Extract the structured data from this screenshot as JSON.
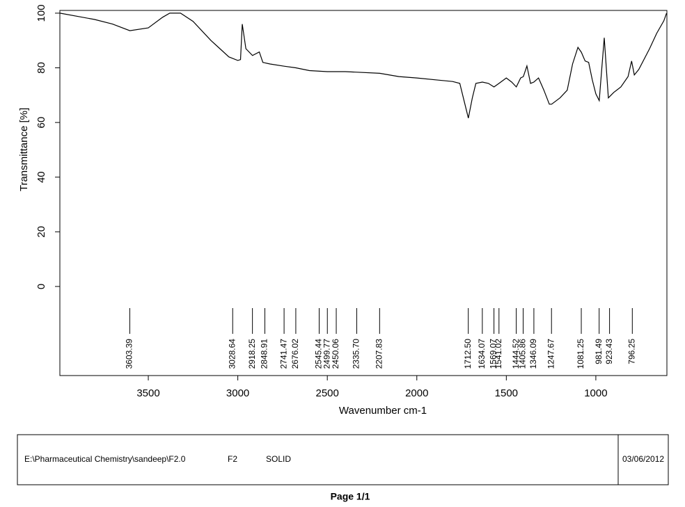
{
  "chart_data": {
    "type": "line",
    "x_label": "Wavenumber cm-1",
    "y_label": "Transmittance [%]",
    "color": "#000000",
    "xlim": [
      3994,
      603
    ],
    "ylim": [
      -32.6,
      101
    ],
    "xticks": [
      3500,
      3000,
      2500,
      2000,
      1500,
      1000
    ],
    "yticks": [
      0,
      20,
      40,
      60,
      80,
      100
    ],
    "x": [
      3994,
      3800,
      3700,
      3603,
      3500,
      3420,
      3380,
      3320,
      3250,
      3150,
      3100,
      3050,
      3000,
      2985,
      2975,
      2955,
      2918,
      2880,
      2860,
      2820,
      2741,
      2676,
      2600,
      2500,
      2400,
      2207,
      2100,
      2000,
      1800,
      1760,
      1740,
      1712,
      1690,
      1670,
      1634,
      1600,
      1569,
      1541,
      1500,
      1470,
      1444,
      1420,
      1405,
      1385,
      1365,
      1346,
      1320,
      1290,
      1260,
      1247,
      1200,
      1160,
      1130,
      1100,
      1081,
      1060,
      1040,
      1020,
      1000,
      981,
      970,
      953,
      930,
      900,
      860,
      820,
      800,
      785,
      760,
      700,
      660,
      620,
      605
    ],
    "values": [
      100,
      97.7,
      96,
      93.6,
      94.6,
      98.5,
      100,
      100,
      97,
      90,
      87,
      84,
      82.7,
      83,
      96,
      87,
      84.5,
      85.8,
      82,
      81.4,
      80.6,
      80,
      79,
      78.6,
      78.6,
      78,
      76.8,
      76.3,
      75,
      74.3,
      69,
      61.6,
      69,
      74.3,
      74.8,
      74.3,
      73,
      74.3,
      76.3,
      74.8,
      73,
      76.3,
      76.8,
      80.7,
      74.3,
      74.8,
      76.3,
      71.8,
      66.7,
      66.7,
      69,
      71.8,
      81.4,
      87.5,
      85.7,
      82.5,
      82,
      75.6,
      70.5,
      68,
      77,
      91,
      69,
      71,
      73,
      76.8,
      82.5,
      77.4,
      79.4,
      87,
      92.6,
      97.2,
      100
    ],
    "peaks": [
      3603.39,
      3028.64,
      2918.25,
      2848.91,
      2741.47,
      2676.02,
      2545.44,
      2499.77,
      2450.06,
      {
        "value": 2335.7,
        "label": "2335.70"
      },
      2207.83,
      {
        "value": 1712.5,
        "label": "1712.50"
      },
      1634.07,
      1569.07,
      1541.02,
      1444.52,
      1405.86,
      1346.09,
      1247.67,
      1081.25,
      981.49,
      923.43,
      796.25
    ]
  },
  "footer": {
    "path": "E:\\Pharmaceutical Chemistry\\sandeep\\F2.0",
    "sample": "F2",
    "state": "SOLID",
    "date": "03/06/2012",
    "page": "Page 1/1"
  }
}
